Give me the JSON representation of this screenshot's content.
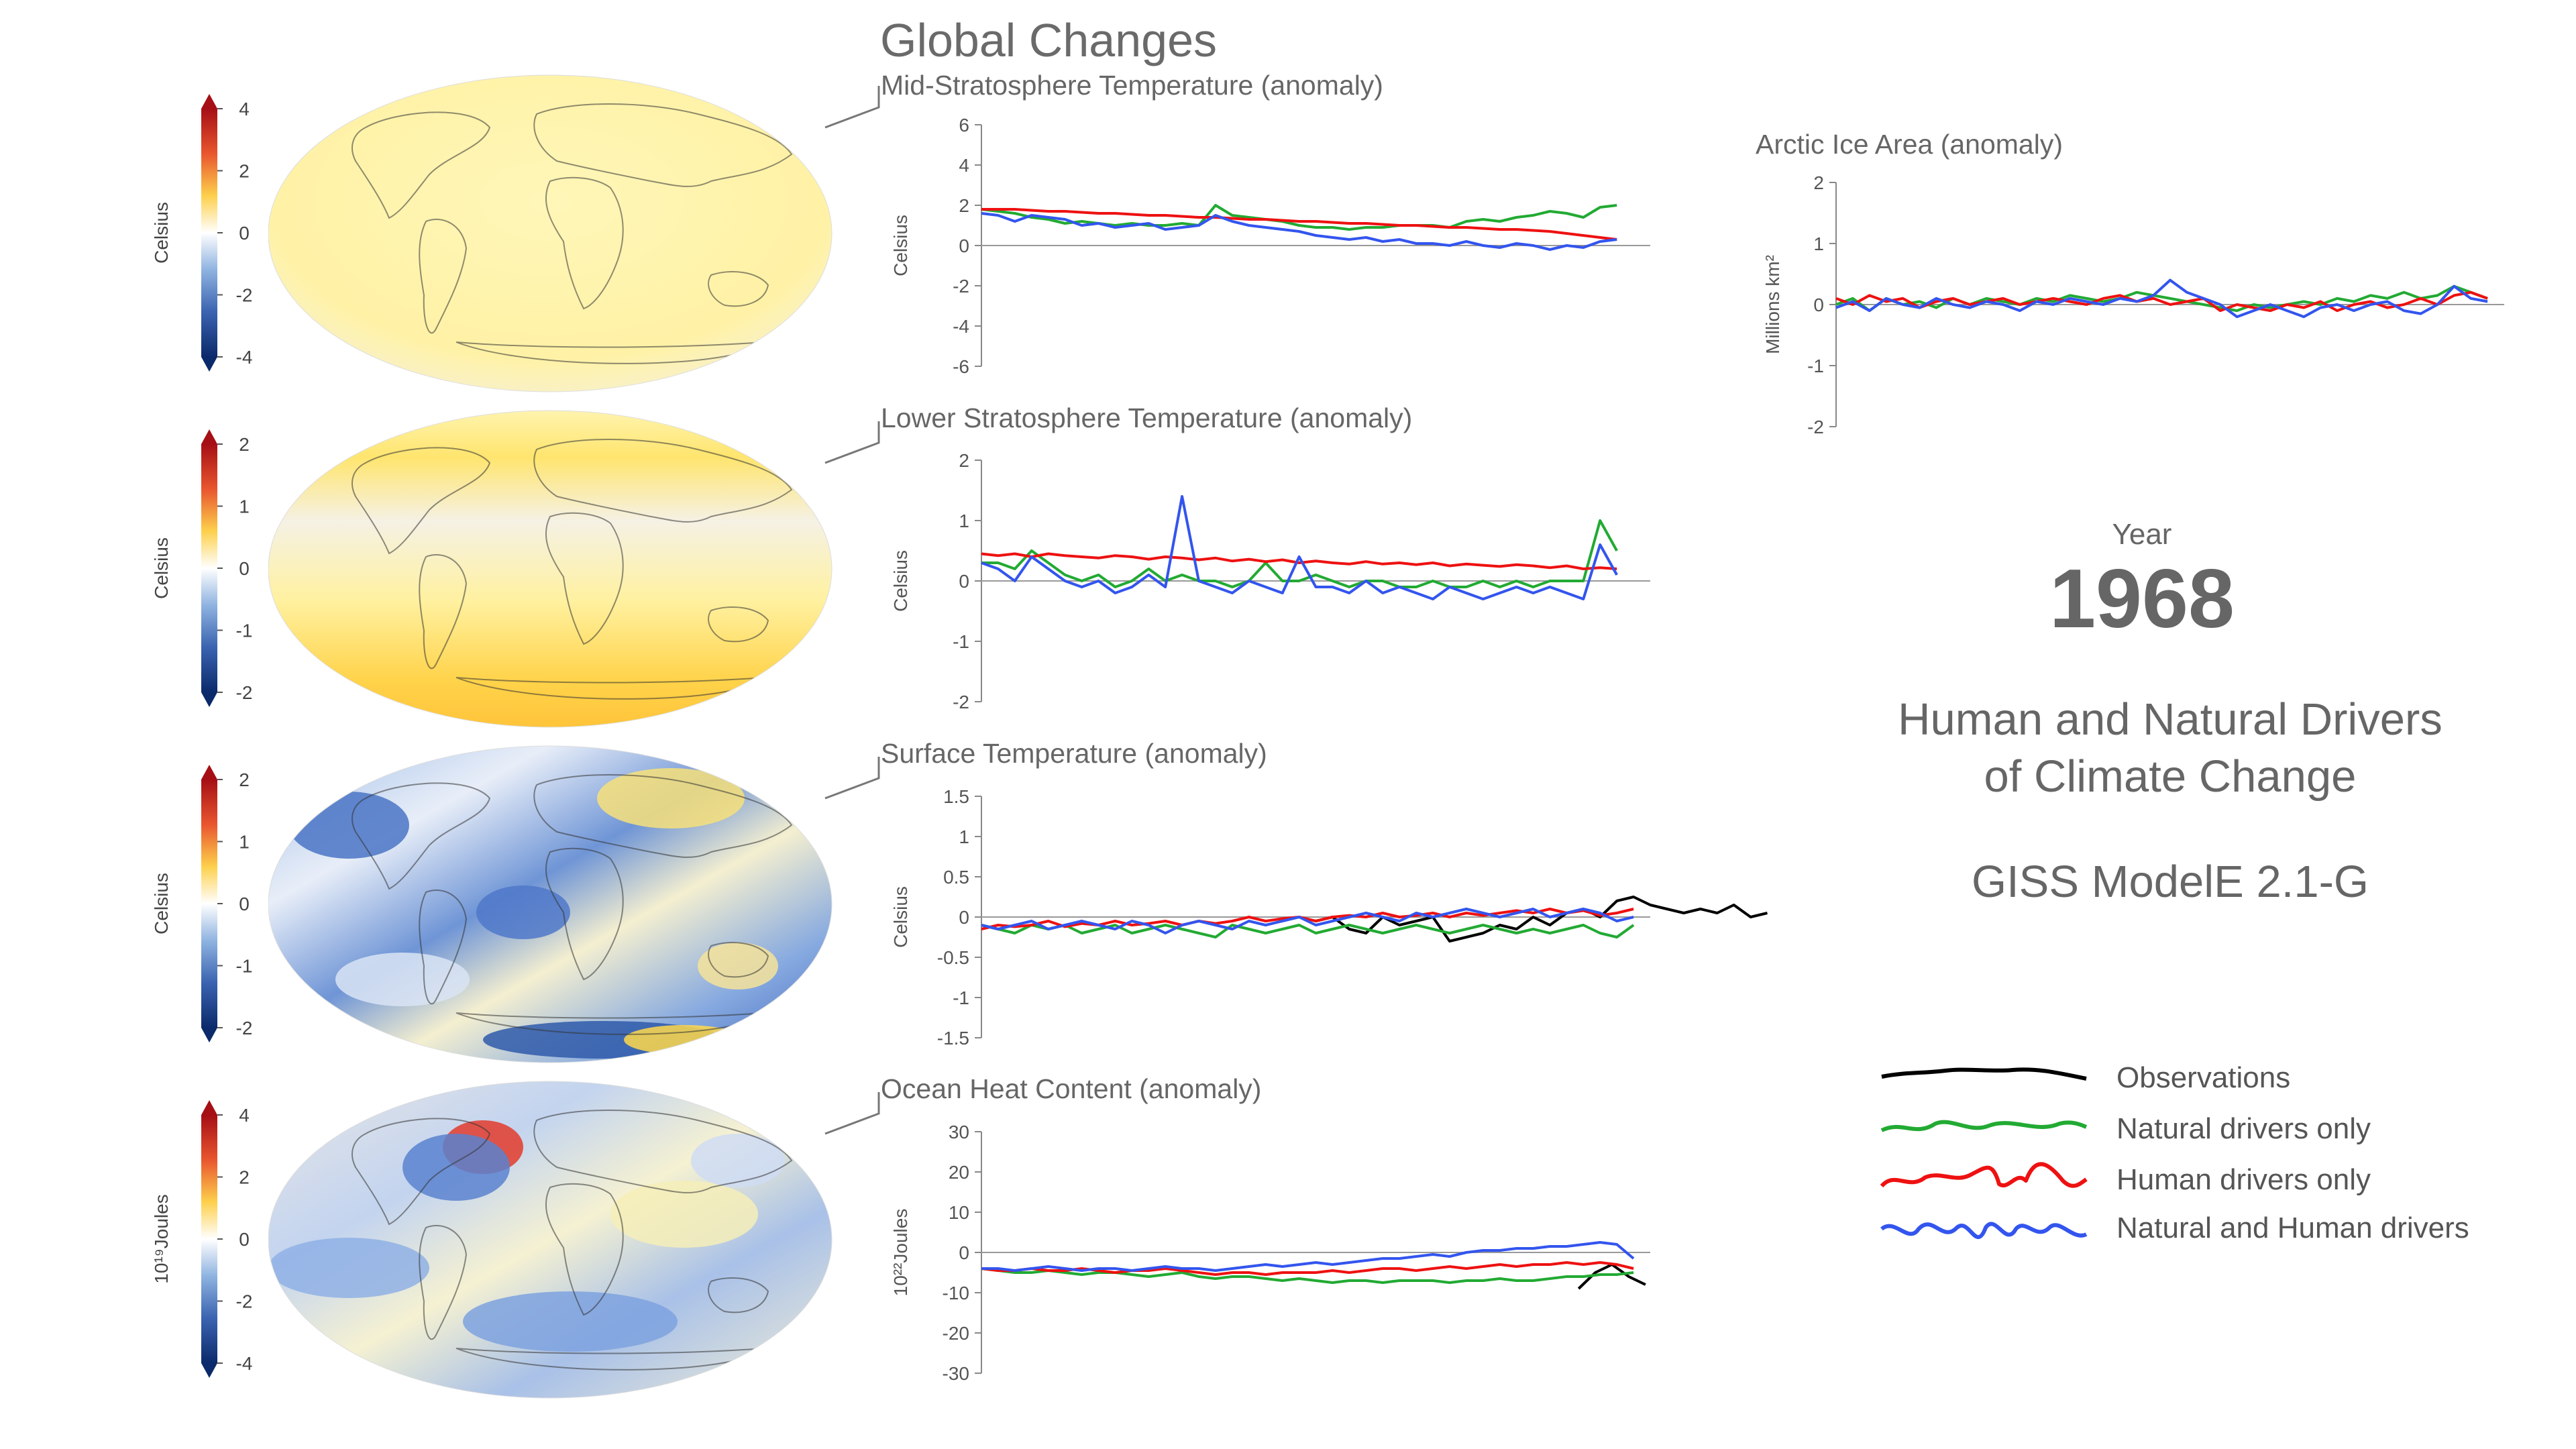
{
  "header": {
    "title": "Global Changes"
  },
  "year": {
    "label": "Year",
    "value": "1968"
  },
  "subtitle": {
    "line1": "Human and Natural Drivers",
    "line2": "of Climate Change",
    "model": "GISS ModelE 2.1-G"
  },
  "legend": [
    {
      "label": "Observations",
      "color": "#000000"
    },
    {
      "label": "Natural drivers only",
      "color": "#22aa33"
    },
    {
      "label": "Human drivers only",
      "color": "#ee1111"
    },
    {
      "label": "Natural and Human drivers",
      "color": "#3355ee"
    }
  ],
  "colorbars": [
    {
      "unit": "Celsius",
      "ticks": [
        "4",
        "2",
        "0",
        "-2",
        "-4"
      ]
    },
    {
      "unit": "Celsius",
      "ticks": [
        "2",
        "1",
        "0",
        "-1",
        "-2"
      ]
    },
    {
      "unit": "Celsius",
      "ticks": [
        "2",
        "1",
        "0",
        "-1",
        "-2"
      ]
    },
    {
      "unit": "10¹⁹Joules",
      "ticks": [
        "4",
        "2",
        "0",
        "-2",
        "-4"
      ]
    }
  ],
  "maps": [
    {
      "field": "mid-stratosphere-temperature",
      "palette": "warm-uniform"
    },
    {
      "field": "lower-stratosphere-temperature",
      "palette": "warm-bands"
    },
    {
      "field": "surface-temperature",
      "palette": "cool-mixed"
    },
    {
      "field": "ocean-heat-content",
      "palette": "neutral-mixed"
    }
  ],
  "chart_data": [
    {
      "type": "line",
      "title": "Mid-Stratosphere Temperature (anomaly)",
      "ylabel": "Celsius",
      "ylim": [
        -6,
        6
      ],
      "yticks": [
        6,
        4,
        2,
        0,
        -2,
        -4,
        -6
      ],
      "xlim": [
        1880,
        2020
      ],
      "series": [
        {
          "name": "Natural drivers only",
          "color": "#22aa33",
          "x_start": 1880,
          "values": [
            1.8,
            1.7,
            1.6,
            1.4,
            1.3,
            1.1,
            1.2,
            1.1,
            1.0,
            1.1,
            1.0,
            1.0,
            1.1,
            1.0,
            2.0,
            1.5,
            1.4,
            1.3,
            1.2,
            1.0,
            0.9,
            0.9,
            0.8,
            0.9,
            0.9,
            1.0,
            1.0,
            1.0,
            0.9,
            1.2,
            1.3,
            1.2,
            1.4,
            1.5,
            1.7,
            1.6,
            1.4,
            1.9,
            2.0
          ]
        },
        {
          "name": "Human drivers only",
          "color": "#ee1111",
          "x_start": 1880,
          "values": [
            1.8,
            1.8,
            1.8,
            1.75,
            1.7,
            1.7,
            1.65,
            1.6,
            1.6,
            1.55,
            1.5,
            1.5,
            1.45,
            1.4,
            1.4,
            1.35,
            1.3,
            1.3,
            1.25,
            1.2,
            1.2,
            1.15,
            1.1,
            1.1,
            1.05,
            1.0,
            1.0,
            0.95,
            0.9,
            0.9,
            0.85,
            0.8,
            0.8,
            0.75,
            0.7,
            0.6,
            0.5,
            0.4,
            0.3
          ]
        },
        {
          "name": "Natural and Human drivers",
          "color": "#3355ee",
          "x_start": 1880,
          "values": [
            1.6,
            1.5,
            1.2,
            1.5,
            1.4,
            1.3,
            1.0,
            1.1,
            0.9,
            1.0,
            1.1,
            0.8,
            0.9,
            1.0,
            1.5,
            1.2,
            1.0,
            0.9,
            0.8,
            0.7,
            0.5,
            0.4,
            0.3,
            0.4,
            0.2,
            0.3,
            0.1,
            0.1,
            0.0,
            0.2,
            0.0,
            -0.1,
            0.1,
            0.0,
            -0.2,
            0.0,
            -0.1,
            0.2,
            0.3
          ]
        }
      ]
    },
    {
      "type": "line",
      "title": "Lower Stratosphere Temperature (anomaly)",
      "ylabel": "Celsius",
      "ylim": [
        -2,
        2
      ],
      "yticks": [
        2,
        1,
        0,
        -1,
        -2
      ],
      "xlim": [
        1880,
        2020
      ],
      "series": [
        {
          "name": "Natural drivers only",
          "color": "#22aa33",
          "x_start": 1880,
          "values": [
            0.3,
            0.3,
            0.2,
            0.5,
            0.3,
            0.1,
            0.0,
            0.1,
            -0.1,
            0.0,
            0.2,
            0.0,
            0.1,
            0.0,
            0.0,
            -0.1,
            0.0,
            0.3,
            0.0,
            0.0,
            0.1,
            0.0,
            -0.1,
            0.0,
            0.0,
            -0.1,
            -0.1,
            0.0,
            -0.1,
            -0.1,
            0.0,
            -0.1,
            0.0,
            -0.1,
            0.0,
            0.0,
            0.0,
            1.0,
            0.5
          ]
        },
        {
          "name": "Human drivers only",
          "color": "#ee1111",
          "x_start": 1880,
          "values": [
            0.45,
            0.42,
            0.45,
            0.4,
            0.45,
            0.42,
            0.4,
            0.38,
            0.42,
            0.4,
            0.36,
            0.4,
            0.38,
            0.35,
            0.38,
            0.33,
            0.36,
            0.32,
            0.35,
            0.3,
            0.33,
            0.3,
            0.28,
            0.32,
            0.28,
            0.3,
            0.27,
            0.3,
            0.25,
            0.28,
            0.26,
            0.24,
            0.27,
            0.25,
            0.22,
            0.25,
            0.2,
            0.22,
            0.2
          ]
        },
        {
          "name": "Natural and Human drivers",
          "color": "#3355ee",
          "x_start": 1880,
          "values": [
            0.3,
            0.2,
            0.0,
            0.4,
            0.2,
            0.0,
            -0.1,
            0.0,
            -0.2,
            -0.1,
            0.1,
            -0.1,
            1.4,
            0.0,
            -0.1,
            -0.2,
            0.0,
            -0.1,
            -0.2,
            0.4,
            -0.1,
            -0.1,
            -0.2,
            0.0,
            -0.2,
            -0.1,
            -0.2,
            -0.3,
            -0.1,
            -0.2,
            -0.3,
            -0.2,
            -0.1,
            -0.2,
            -0.1,
            -0.2,
            -0.3,
            0.6,
            0.1
          ]
        }
      ]
    },
    {
      "type": "line",
      "title": "Surface Temperature (anomaly)",
      "ylabel": "Celsius",
      "ylim": [
        -1.5,
        1.5
      ],
      "yticks": [
        1.5,
        1,
        0.5,
        0,
        -0.5,
        -1,
        -1.5
      ],
      "xlim": [
        1880,
        2020
      ],
      "series": [
        {
          "name": "Observations",
          "color": "#000000",
          "x_start": 1950,
          "values": [
            -0.05,
            0.0,
            -0.15,
            -0.2,
            0.0,
            -0.1,
            -0.05,
            0.0,
            -0.3,
            -0.25,
            -0.2,
            -0.1,
            -0.15,
            0.0,
            -0.1,
            0.05,
            0.1,
            0.0,
            0.2,
            0.25,
            0.15,
            0.1,
            0.05,
            0.1,
            0.05,
            0.15,
            0.0,
            0.05
          ]
        },
        {
          "name": "Natural drivers only",
          "color": "#22aa33",
          "x_start": 1880,
          "values": [
            -0.1,
            -0.15,
            -0.2,
            -0.1,
            -0.15,
            -0.1,
            -0.2,
            -0.15,
            -0.1,
            -0.2,
            -0.15,
            -0.1,
            -0.15,
            -0.2,
            -0.25,
            -0.1,
            -0.15,
            -0.2,
            -0.15,
            -0.1,
            -0.2,
            -0.15,
            -0.1,
            -0.15,
            -0.2,
            -0.15,
            -0.1,
            -0.15,
            -0.2,
            -0.15,
            -0.1,
            -0.15,
            -0.2,
            -0.15,
            -0.2,
            -0.15,
            -0.1,
            -0.2,
            -0.25,
            -0.1
          ]
        },
        {
          "name": "Human drivers only",
          "color": "#ee1111",
          "x_start": 1880,
          "values": [
            -0.15,
            -0.1,
            -0.12,
            -0.1,
            -0.05,
            -0.12,
            -0.08,
            -0.1,
            -0.05,
            -0.1,
            -0.08,
            -0.05,
            -0.1,
            -0.05,
            -0.08,
            -0.05,
            0.0,
            -0.05,
            -0.02,
            0.0,
            -0.05,
            0.0,
            0.02,
            0.0,
            0.05,
            0.0,
            0.02,
            0.05,
            0.0,
            0.05,
            0.02,
            0.05,
            0.08,
            0.05,
            0.1,
            0.05,
            0.08,
            0.02,
            0.05,
            0.1
          ]
        },
        {
          "name": "Natural and Human drivers",
          "color": "#3355ee",
          "x_start": 1880,
          "values": [
            -0.1,
            -0.15,
            -0.1,
            -0.05,
            -0.15,
            -0.1,
            -0.05,
            -0.1,
            -0.15,
            -0.05,
            -0.1,
            -0.2,
            -0.1,
            -0.05,
            -0.1,
            -0.15,
            -0.05,
            -0.1,
            -0.05,
            0.0,
            -0.1,
            -0.05,
            0.0,
            0.05,
            0.0,
            -0.05,
            0.05,
            0.0,
            0.05,
            0.1,
            0.05,
            0.0,
            0.05,
            0.1,
            0.0,
            0.05,
            0.1,
            0.05,
            -0.05,
            0.0
          ]
        }
      ]
    },
    {
      "type": "line",
      "title": "Ocean Heat Content (anomaly)",
      "ylabel": "10²²Joules",
      "ylim": [
        -30,
        30
      ],
      "yticks": [
        30,
        20,
        10,
        0,
        -10,
        -20,
        -30
      ],
      "xlim": [
        1880,
        2020
      ],
      "series": [
        {
          "name": "Observations",
          "color": "#000000",
          "x_start": 2005,
          "values": [
            -9,
            -5,
            -3,
            -6,
            -8
          ]
        },
        {
          "name": "Natural drivers only",
          "color": "#22aa33",
          "x_start": 1880,
          "values": [
            -4,
            -4.5,
            -5,
            -5,
            -4.5,
            -5,
            -5.5,
            -5,
            -5,
            -5.5,
            -6,
            -5.5,
            -5,
            -6,
            -6.5,
            -6,
            -6,
            -6.5,
            -7,
            -6.5,
            -7,
            -7.5,
            -7,
            -7,
            -7.5,
            -7,
            -7,
            -7,
            -7.5,
            -7,
            -7,
            -6.5,
            -7,
            -7,
            -6.5,
            -6,
            -6,
            -5.5,
            -5.5,
            -5
          ]
        },
        {
          "name": "Human drivers only",
          "color": "#ee1111",
          "x_start": 1880,
          "values": [
            -4,
            -4.5,
            -4.5,
            -4,
            -4.5,
            -4.5,
            -4,
            -4.5,
            -5,
            -4.5,
            -4.5,
            -4,
            -4.5,
            -5,
            -5.5,
            -5,
            -5,
            -5.5,
            -5,
            -5,
            -5,
            -4.5,
            -5,
            -4.5,
            -4,
            -4,
            -4.5,
            -4,
            -3.5,
            -4,
            -3.5,
            -3,
            -3.5,
            -3,
            -3,
            -2.5,
            -3,
            -2.5,
            -3,
            -4
          ]
        },
        {
          "name": "Natural and Human drivers",
          "color": "#3355ee",
          "x_start": 1880,
          "values": [
            -4,
            -4,
            -4.5,
            -4,
            -3.5,
            -4,
            -4.5,
            -4,
            -4,
            -4.5,
            -4,
            -3.5,
            -4,
            -4,
            -4.5,
            -4,
            -3.5,
            -3,
            -3.5,
            -3,
            -2.5,
            -3,
            -2.5,
            -2,
            -1.5,
            -1.5,
            -1,
            -0.5,
            -1,
            0,
            0.5,
            0.5,
            1,
            1,
            1.5,
            1.5,
            2,
            2.5,
            2,
            -1.5
          ]
        }
      ]
    },
    {
      "type": "line",
      "title": "Arctic Ice Area (anomaly)",
      "ylabel": "Millions km²",
      "ylim": [
        -2,
        2
      ],
      "yticks": [
        2,
        1,
        0,
        -1,
        -2
      ],
      "xlim": [
        1880,
        2020
      ],
      "series": [
        {
          "name": "Natural drivers only",
          "color": "#22aa33",
          "x_start": 1880,
          "values": [
            0.0,
            0.1,
            -0.1,
            0.1,
            0.0,
            0.05,
            -0.05,
            0.1,
            0.0,
            0.1,
            0.05,
            0.0,
            0.1,
            0.05,
            0.15,
            0.1,
            0.05,
            0.1,
            0.2,
            0.15,
            0.1,
            0.05,
            0.0,
            -0.05,
            -0.1,
            0.0,
            -0.05,
            0.0,
            0.05,
            0.0,
            0.1,
            0.05,
            0.15,
            0.1,
            0.2,
            0.1,
            0.15,
            0.3,
            0.2,
            0.1
          ]
        },
        {
          "name": "Human drivers only",
          "color": "#ee1111",
          "x_start": 1880,
          "values": [
            0.1,
            0.0,
            0.15,
            0.05,
            0.1,
            -0.05,
            0.05,
            0.1,
            0.0,
            0.05,
            0.1,
            0.0,
            0.05,
            0.1,
            0.05,
            0.0,
            0.1,
            0.15,
            0.05,
            0.1,
            0.0,
            0.05,
            0.1,
            -0.1,
            0.0,
            -0.05,
            -0.1,
            0.0,
            -0.05,
            0.05,
            -0.1,
            0.0,
            0.05,
            -0.05,
            0.0,
            0.1,
            0.0,
            0.15,
            0.2,
            0.1
          ]
        },
        {
          "name": "Natural and Human drivers",
          "color": "#3355ee",
          "x_start": 1880,
          "values": [
            -0.05,
            0.05,
            -0.1,
            0.1,
            0.0,
            -0.05,
            0.1,
            0.0,
            -0.05,
            0.05,
            0.0,
            -0.1,
            0.05,
            0.0,
            0.1,
            0.05,
            0.0,
            0.1,
            0.05,
            0.15,
            0.4,
            0.2,
            0.1,
            0.0,
            -0.2,
            -0.1,
            0.0,
            -0.1,
            -0.2,
            -0.05,
            0.0,
            -0.1,
            0.0,
            0.05,
            -0.1,
            -0.15,
            0.0,
            0.3,
            0.1,
            0.05
          ]
        }
      ]
    }
  ]
}
